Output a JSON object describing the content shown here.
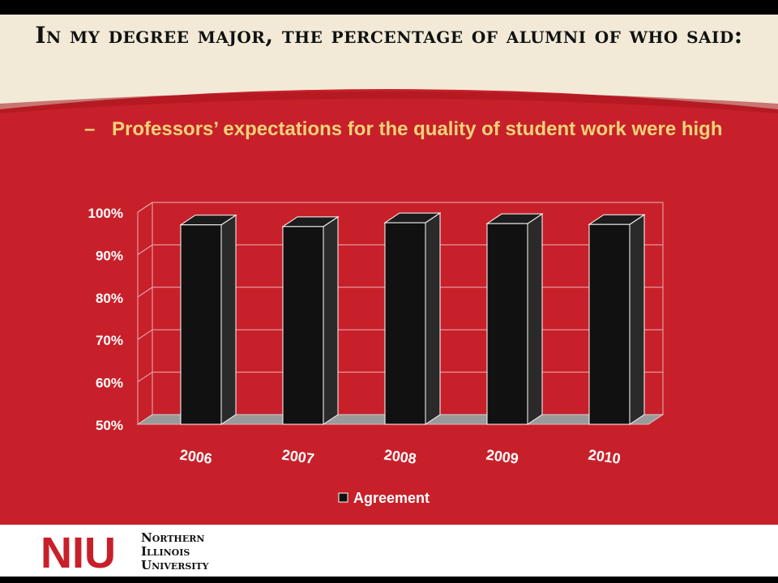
{
  "slide": {
    "title": "In my degree major, the percentage of alumni of who said:",
    "subtitle_bullet": "–",
    "subtitle": "Professors’ expectations for the quality of student work were high"
  },
  "colors": {
    "header_bg": "#f2ead7",
    "panel_red": "#c8202a",
    "subtitle_gold": "#f1d27a",
    "bar_front": "#111111",
    "floor_gray": "#9a9a9a",
    "logo_red": "#c8202a"
  },
  "chart_data": {
    "type": "bar",
    "style": "3d",
    "categories": [
      "2006",
      "2007",
      "2008",
      "2009",
      "2010"
    ],
    "series": [
      {
        "name": "Agreement",
        "values": [
          97,
          96.6,
          97.5,
          97.3,
          97.1
        ]
      }
    ],
    "ylim": [
      50,
      100
    ],
    "yticks": [
      50,
      60,
      70,
      80,
      90,
      100
    ],
    "ytick_labels": [
      "50%",
      "60%",
      "70%",
      "80%",
      "90%",
      "100%"
    ],
    "grid": true,
    "legend": "bottom"
  },
  "logo": {
    "mark": "NIU",
    "line1": "Northern",
    "line2": "Illinois",
    "line3": "University"
  }
}
